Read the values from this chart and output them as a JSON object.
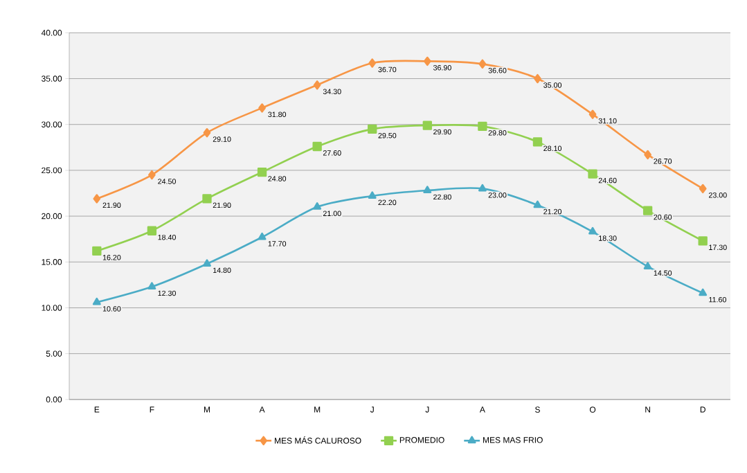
{
  "chart_data": {
    "type": "line",
    "categories": [
      "E",
      "F",
      "M",
      "A",
      "M",
      "J",
      "J",
      "A",
      "S",
      "O",
      "N",
      "D"
    ],
    "series": [
      {
        "name": "MES MÁS CALUROSO",
        "color": "#f79646",
        "marker": "diamond",
        "values": [
          21.9,
          24.5,
          29.1,
          31.8,
          34.3,
          36.7,
          36.9,
          36.6,
          35.0,
          31.1,
          26.7,
          23.0
        ],
        "value_labels": [
          "21.90",
          "24.50",
          "29.10",
          "31.80",
          "34.30",
          "36.70",
          "36.90",
          "36.60",
          "35.00",
          "31.10",
          "26.70",
          "23.00"
        ]
      },
      {
        "name": "PROMEDIO",
        "color": "#92d050",
        "marker": "square",
        "values": [
          16.2,
          18.4,
          21.9,
          24.8,
          27.6,
          29.5,
          29.9,
          29.8,
          28.1,
          24.6,
          20.6,
          17.3
        ],
        "value_labels": [
          "16.20",
          "18.40",
          "21.90",
          "24.80",
          "27.60",
          "29.50",
          "29.90",
          "29.80",
          "28.10",
          "24.60",
          "20.60",
          "17.30"
        ]
      },
      {
        "name": "MES MAS FRIO",
        "color": "#4bacc6",
        "marker": "triangle",
        "values": [
          10.6,
          12.3,
          14.8,
          17.7,
          21.0,
          22.2,
          22.8,
          23.0,
          21.2,
          18.3,
          14.5,
          11.6
        ],
        "value_labels": [
          "10.60",
          "12.30",
          "14.80",
          "17.70",
          "21.00",
          "22.20",
          "22.80",
          "23.00",
          "21.20",
          "18.30",
          "14.50",
          "11.60"
        ]
      }
    ],
    "ylim": [
      0,
      40
    ],
    "yticks": [
      {
        "value": 0,
        "label": "0.00"
      },
      {
        "value": 5,
        "label": "5.00"
      },
      {
        "value": 10,
        "label": "10.00"
      },
      {
        "value": 15,
        "label": "15.00"
      },
      {
        "value": 20,
        "label": "20.00"
      },
      {
        "value": 25,
        "label": "25.00"
      },
      {
        "value": 30,
        "label": "30.00"
      },
      {
        "value": 35,
        "label": "35.00"
      },
      {
        "value": 40,
        "label": "40.00"
      }
    ],
    "grid": "y",
    "legend": "bottom",
    "line_style": "solid"
  }
}
